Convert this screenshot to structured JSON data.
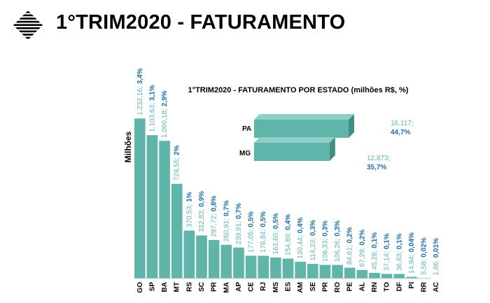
{
  "header": {
    "title": "1°TRIM2020 - FATURAMENTO"
  },
  "colors": {
    "bar_fill": "#5fb5aa",
    "value_label": "#5fb5aa",
    "percent_label": "#1f6fa8"
  },
  "chart_data": [
    {
      "type": "bar",
      "title": "1°TRIM2020 - FATURAMENTO POR ESTADO (milhões R$, %)",
      "ylabel": "Milhões",
      "categories": [
        "GO",
        "SP",
        "BA",
        "MT",
        "RS",
        "SC",
        "PR",
        "MA",
        "AP",
        "CE",
        "RJ",
        "MS",
        "ES",
        "AM",
        "SE",
        "PR",
        "RO",
        "PE",
        "AL",
        "RN",
        "TO",
        "DF",
        "PI",
        "RR",
        "AC"
      ],
      "values": [
        1232.16,
        1103.63,
        1060.18,
        729.55,
        370.53,
        332.83,
        297.72,
        260.91,
        239.91,
        177.05,
        176.84,
        163.6,
        154.69,
        130.44,
        114.23,
        106.33,
        106.26,
        84.61,
        67.29,
        45.28,
        37.14,
        36.83,
        14.94,
        5.58,
        1.86
      ],
      "labels": [
        [
          "1.232,16;",
          "3,4%"
        ],
        [
          "1.103,63;",
          "3,1%"
        ],
        [
          "1.060,18;",
          "2,9%"
        ],
        [
          "729,55;",
          "2%"
        ],
        [
          "370,53;",
          "1%"
        ],
        [
          "332,83;",
          "0,9%"
        ],
        [
          "297,72;",
          "0,8%"
        ],
        [
          "260,91;",
          "0,7%"
        ],
        [
          "239,91;",
          "0,7%"
        ],
        [
          "177,05;",
          "0,5%"
        ],
        [
          "176,84;",
          "0,5%"
        ],
        [
          "163,60;",
          "0,5%"
        ],
        [
          "154,69;",
          "0,4%"
        ],
        [
          "130,44;",
          "0,4%"
        ],
        [
          "114,23;",
          "0,3%"
        ],
        [
          "106,33;",
          "0,3%"
        ],
        [
          "106,26;",
          "0,3%"
        ],
        [
          "84,61;",
          "0,2%"
        ],
        [
          "67,29;",
          "0,2%"
        ],
        [
          "45,28;",
          "0,1%"
        ],
        [
          "37,14;",
          "0,1%"
        ],
        [
          "36,83;",
          "0,1%"
        ],
        [
          "14,94;",
          "0,04%"
        ],
        [
          "5,58;",
          "0,02%"
        ],
        [
          "1,86;",
          "0,01%"
        ]
      ],
      "grid": false,
      "legend": "none"
    },
    {
      "type": "bar",
      "orientation": "horizontal",
      "style": "3d",
      "categories": [
        "PA",
        "MG"
      ],
      "values": [
        16117,
        12873
      ],
      "labels": [
        [
          "16.117;",
          "44,7%"
        ],
        [
          "12.873;",
          "35,7%"
        ]
      ]
    }
  ]
}
